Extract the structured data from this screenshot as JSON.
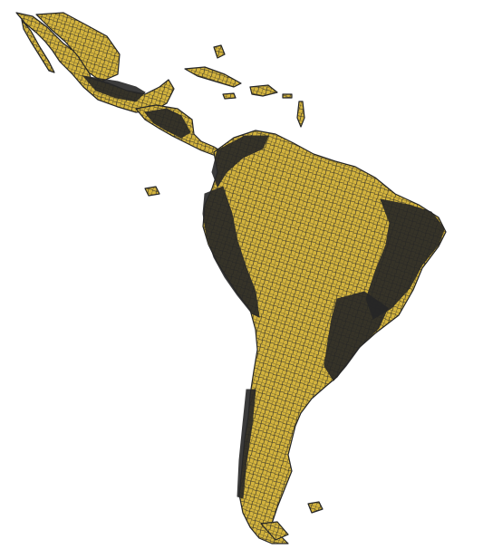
{
  "map": {
    "fill_color": "#d4b43e",
    "border_color": "#262626",
    "background_color": "#ffffff"
  }
}
